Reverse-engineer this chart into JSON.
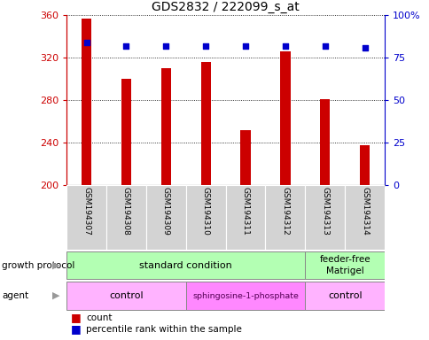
{
  "title": "GDS2832 / 222099_s_at",
  "samples": [
    "GSM194307",
    "GSM194308",
    "GSM194309",
    "GSM194310",
    "GSM194311",
    "GSM194312",
    "GSM194313",
    "GSM194314"
  ],
  "counts": [
    357,
    300,
    310,
    316,
    252,
    326,
    281,
    238
  ],
  "percentile_ranks": [
    84,
    82,
    82,
    82,
    82,
    82,
    82,
    81
  ],
  "ylim_left": [
    200,
    360
  ],
  "ylim_right": [
    0,
    100
  ],
  "yticks_left": [
    200,
    240,
    280,
    320,
    360
  ],
  "yticks_right": [
    0,
    25,
    50,
    75,
    100
  ],
  "bar_color": "#cc0000",
  "dot_color": "#0000cc",
  "bar_width": 0.25,
  "legend_count_label": "count",
  "legend_percentile_label": "percentile rank within the sample",
  "growth_protocol_label": "growth protocol",
  "agent_label": "agent",
  "left_axis_color": "#cc0000",
  "right_axis_color": "#0000cc",
  "gp_color": "#b3ffb3",
  "agent_light_color": "#ffb3ff",
  "agent_dark_color": "#ff88ff",
  "agent_dark_text_color": "#550055",
  "sample_box_color": "#d3d3d3",
  "arrow_color": "#999999"
}
